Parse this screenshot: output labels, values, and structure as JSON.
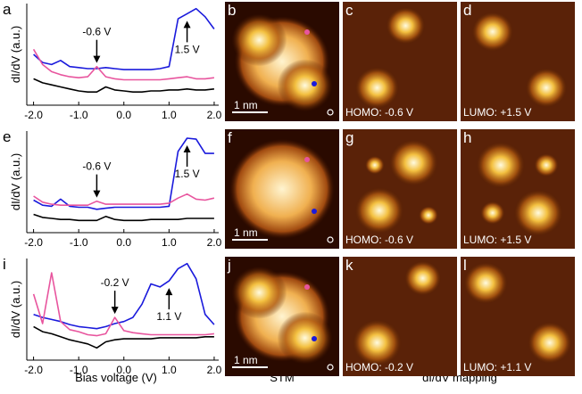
{
  "chart_data": [
    {
      "type": "line",
      "letter": "a",
      "ylabel": "dI/dV (a.u.)",
      "x": [
        -2.0,
        -1.8,
        -1.6,
        -1.4,
        -1.2,
        -1.0,
        -0.8,
        -0.6,
        -0.4,
        -0.2,
        0,
        0.2,
        0.4,
        0.6,
        0.8,
        1.0,
        1.2,
        1.4,
        1.6,
        1.8,
        2.0
      ],
      "xlim": [
        -2.15,
        2.1
      ],
      "ylim": [
        0,
        10
      ],
      "xticks": [
        {
          "value": -2,
          "label": "-2.0"
        },
        {
          "value": -1,
          "label": "-1.0"
        },
        {
          "value": 0,
          "label": "0.0"
        },
        {
          "value": 1,
          "label": "1.0"
        },
        {
          "value": 2,
          "label": "2.0"
        }
      ],
      "series": [
        {
          "color": "#1a1adc",
          "values": [
            5.0,
            4.2,
            4.0,
            4.4,
            3.8,
            3.7,
            3.6,
            3.6,
            3.7,
            3.6,
            3.5,
            3.5,
            3.5,
            3.5,
            3.6,
            3.8,
            8.5,
            9.0,
            9.5,
            8.7,
            7.5
          ]
        },
        {
          "color": "#e8559e",
          "values": [
            5.5,
            4.0,
            3.3,
            3.0,
            2.8,
            2.7,
            2.8,
            3.8,
            2.8,
            2.6,
            2.5,
            2.5,
            2.5,
            2.5,
            2.5,
            2.6,
            2.7,
            2.8,
            2.6,
            2.6,
            2.7
          ]
        },
        {
          "color": "#000000",
          "values": [
            2.6,
            2.2,
            2.0,
            1.8,
            1.6,
            1.4,
            1.3,
            1.3,
            1.8,
            1.5,
            1.4,
            1.3,
            1.3,
            1.4,
            1.4,
            1.5,
            1.5,
            1.6,
            1.5,
            1.5,
            1.6
          ]
        }
      ],
      "annotations": [
        {
          "text": "-0.6 V",
          "x": -0.6,
          "direction": "down"
        },
        {
          "text": "1.5 V",
          "x": 1.4,
          "direction": "up"
        }
      ]
    },
    {
      "type": "line",
      "letter": "e",
      "ylabel": "dI/dV (a.u.)",
      "x": [
        -2.0,
        -1.8,
        -1.6,
        -1.4,
        -1.2,
        -1.0,
        -0.8,
        -0.6,
        -0.4,
        -0.2,
        0,
        0.2,
        0.4,
        0.6,
        0.8,
        1.0,
        1.2,
        1.4,
        1.6,
        1.8,
        2.0
      ],
      "xlim": [
        -2.15,
        2.1
      ],
      "ylim": [
        0,
        10
      ],
      "xticks": [
        {
          "value": -2,
          "label": "-2.0"
        },
        {
          "value": -1,
          "label": "-1.0"
        },
        {
          "value": 0,
          "label": "0.0"
        },
        {
          "value": 1,
          "label": "1.0"
        },
        {
          "value": 2,
          "label": "2.0"
        }
      ],
      "series": [
        {
          "color": "#1a1adc",
          "values": [
            3.2,
            2.7,
            2.6,
            3.3,
            2.6,
            2.5,
            2.5,
            2.3,
            2.4,
            2.5,
            2.5,
            2.5,
            2.5,
            2.5,
            2.5,
            2.6,
            8.0,
            9.3,
            9.2,
            7.8,
            7.8
          ]
        },
        {
          "color": "#e8559e",
          "values": [
            3.6,
            3.0,
            2.8,
            2.7,
            2.7,
            2.7,
            2.7,
            3.1,
            2.8,
            2.8,
            2.8,
            2.8,
            2.8,
            2.8,
            2.8,
            2.9,
            3.4,
            3.8,
            3.3,
            3.2,
            3.4
          ]
        },
        {
          "color": "#000000",
          "values": [
            1.8,
            1.5,
            1.4,
            1.3,
            1.3,
            1.2,
            1.2,
            1.2,
            1.6,
            1.3,
            1.2,
            1.2,
            1.2,
            1.3,
            1.3,
            1.3,
            1.3,
            1.4,
            1.4,
            1.4,
            1.4
          ]
        }
      ],
      "annotations": [
        {
          "text": "-0.6 V",
          "x": -0.6,
          "direction": "down"
        },
        {
          "text": "1.5 V",
          "x": 1.4,
          "direction": "up"
        }
      ]
    },
    {
      "type": "line",
      "letter": "i",
      "ylabel": "dI/dV (a.u.)",
      "x": [
        -2.0,
        -1.8,
        -1.6,
        -1.4,
        -1.2,
        -1.0,
        -0.8,
        -0.6,
        -0.4,
        -0.2,
        0,
        0.2,
        0.4,
        0.6,
        0.8,
        1.0,
        1.2,
        1.4,
        1.6,
        1.8,
        2.0
      ],
      "xlim": [
        -2.15,
        2.1
      ],
      "ylim": [
        0,
        10
      ],
      "xticks": [
        {
          "value": -2,
          "label": "-2.0"
        },
        {
          "value": -1,
          "label": "-1.0"
        },
        {
          "value": 0,
          "label": "0.0"
        },
        {
          "value": 1,
          "label": "1.0"
        },
        {
          "value": 2,
          "label": "2.0"
        }
      ],
      "series": [
        {
          "color": "#1a1adc",
          "values": [
            4.5,
            4.2,
            4.0,
            3.8,
            3.5,
            3.3,
            3.2,
            3.1,
            3.3,
            3.6,
            3.8,
            4.2,
            5.5,
            7.5,
            7.2,
            7.8,
            9.0,
            9.5,
            8.0,
            4.5,
            3.5
          ]
        },
        {
          "color": "#e8559e",
          "values": [
            6.5,
            3.6,
            8.6,
            3.8,
            3.0,
            2.8,
            2.5,
            2.4,
            2.6,
            4.2,
            2.9,
            2.7,
            2.6,
            2.5,
            2.5,
            2.5,
            2.5,
            2.5,
            2.5,
            2.5,
            2.6
          ]
        },
        {
          "color": "#000000",
          "values": [
            3.3,
            2.8,
            2.6,
            2.3,
            2.0,
            1.8,
            1.6,
            1.2,
            1.8,
            2.0,
            2.1,
            2.1,
            2.1,
            2.1,
            2.2,
            2.2,
            2.2,
            2.2,
            2.2,
            2.3,
            2.3
          ]
        }
      ],
      "annotations": [
        {
          "text": "-0.2 V",
          "x": -0.2,
          "direction": "down"
        },
        {
          "text": "1.1 V",
          "x": 1.0,
          "direction": "up"
        }
      ]
    }
  ],
  "images": [
    {
      "letter": "b",
      "label": "1 nm"
    },
    {
      "letter": "c",
      "label": "HOMO: -0.6 V"
    },
    {
      "letter": "d",
      "label": "LUMO: +1.5 V"
    },
    {
      "letter": "f",
      "label": "1 nm"
    },
    {
      "letter": "g",
      "label": "HOMO: -0.6 V"
    },
    {
      "letter": "h",
      "label": "LUMO: +1.5 V"
    },
    {
      "letter": "j",
      "label": "1 nm"
    },
    {
      "letter": "k",
      "label": "HOMO: -0.2 V"
    },
    {
      "letter": "l",
      "label": "LUMO: +1.1 V"
    }
  ],
  "footer": {
    "xlabel": "Bias voltage (V)",
    "stm": "STM",
    "mapping": "dI/dV mapping"
  }
}
